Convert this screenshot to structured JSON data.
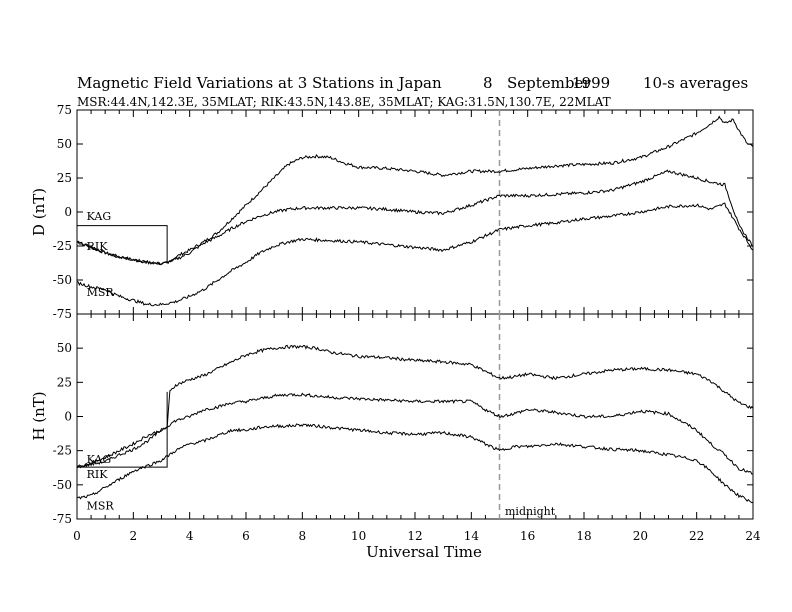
{
  "header": {
    "title": "Magnetic Field Variations at 3 Stations in Japan",
    "date_day": "8",
    "date_month": "September",
    "date_year": "1999",
    "averaging": "10-s averages",
    "stations_info": "MSR:44.4N,142.3E, 35MLAT;   RIK:43.5N,143.8E, 35MLAT;   KAG:31.5N,130.7E, 22MLAT"
  },
  "chart_data": {
    "type": "line",
    "x_label": "Universal Time",
    "x_range": [
      0,
      24
    ],
    "x_ticks": [
      0,
      2,
      4,
      6,
      8,
      10,
      12,
      14,
      16,
      18,
      20,
      22,
      24
    ],
    "midnight_marker": {
      "x": 15,
      "label": "midnight"
    },
    "panels": [
      {
        "name": "D",
        "y_label": "D (nT)",
        "y_range": [
          -75,
          75
        ],
        "y_ticks": [
          75,
          50,
          25,
          0,
          -25,
          -50,
          -75
        ],
        "station_labels": [
          {
            "text": "KAG",
            "x": 0.2,
            "y": -3
          },
          {
            "text": "RIK",
            "x": 0.2,
            "y": -25
          },
          {
            "text": "MSR",
            "x": 0.2,
            "y": -59
          }
        ],
        "step": {
          "t": 3.2,
          "from": -10,
          "to": -38
        },
        "series": [
          {
            "x": [
              0,
              0.5,
              1,
              1.5,
              2,
              2.5,
              3,
              3.2,
              3.5,
              4,
              4.5,
              5,
              5.5,
              6,
              6.5,
              7,
              7.5,
              8,
              8.5,
              9,
              9.5,
              10,
              11,
              12,
              13,
              14,
              15,
              16,
              17,
              18,
              19,
              20,
              21,
              22,
              22.5,
              22.8,
              23,
              23.3,
              23.5,
              23.8,
              24
            ],
            "y": [
              -22,
              -26,
              -30,
              -33,
              -35,
              -37,
              -38,
              -38,
              -33,
              -28,
              -22,
              -15,
              -5,
              5,
              15,
              25,
              35,
              40,
              41,
              40,
              36,
              33,
              32,
              30,
              27,
              30,
              30,
              32,
              34,
              35,
              36,
              40,
              48,
              58,
              65,
              70,
              65,
              68,
              60,
              50,
              48
            ]
          },
          {
            "x": [
              0,
              0.5,
              1,
              1.5,
              2,
              2.5,
              3,
              3.2,
              3.5,
              4,
              4.5,
              5,
              5.5,
              6,
              6.5,
              7,
              7.5,
              8,
              9,
              10,
              11,
              12,
              13,
              14,
              15,
              16,
              17,
              18,
              19,
              20,
              21,
              22,
              22.5,
              23,
              23.5,
              24
            ],
            "y": [
              -22,
              -26,
              -30,
              -33,
              -35,
              -37,
              -38,
              -37,
              -35,
              -30,
              -23,
              -18,
              -12,
              -7,
              -3,
              0,
              2,
              3,
              3,
              3,
              2,
              0,
              -1,
              5,
              12,
              12,
              13,
              14,
              16,
              22,
              30,
              25,
              22,
              20,
              -10,
              -25
            ]
          },
          {
            "x": [
              0,
              0.5,
              1,
              1.5,
              2,
              2.5,
              3,
              3.5,
              4,
              4.5,
              5,
              5.5,
              6,
              6.5,
              7,
              7.5,
              8,
              9,
              10,
              11,
              12,
              13,
              14,
              15,
              16,
              17,
              18,
              19,
              20,
              21,
              22,
              22.5,
              23,
              23.5,
              24
            ],
            "y": [
              -52,
              -55,
              -57,
              -62,
              -65,
              -68,
              -68,
              -66,
              -62,
              -57,
              -50,
              -43,
              -37,
              -30,
              -25,
              -22,
              -20,
              -21,
              -22,
              -24,
              -26,
              -28,
              -22,
              -13,
              -10,
              -8,
              -5,
              -3,
              0,
              4,
              5,
              2,
              6,
              -12,
              -28
            ]
          }
        ]
      },
      {
        "name": "H",
        "y_label": "H (nT)",
        "y_range": [
          -75,
          75
        ],
        "y_ticks": [
          75,
          50,
          25,
          0,
          -25,
          -50,
          -75
        ],
        "station_labels": [
          {
            "text": "KAG",
            "x": 0.2,
            "y": -31
          },
          {
            "text": "RIK",
            "x": 0.2,
            "y": -42
          },
          {
            "text": "MSR",
            "x": 0.2,
            "y": -65
          }
        ],
        "step": {
          "t": 3.2,
          "from": -37,
          "to": 18
        },
        "series": [
          {
            "x": [
              0,
              0.5,
              1,
              1.5,
              2,
              2.5,
              3,
              3.2,
              3.3,
              3.5,
              4,
              4.5,
              5,
              5.5,
              6,
              6.5,
              7,
              7.5,
              8,
              8.5,
              9,
              10,
              11,
              12,
              13,
              14,
              14.5,
              15,
              15.5,
              16,
              17,
              18,
              19,
              20,
              21,
              22,
              22.5,
              23,
              23.5,
              24
            ],
            "y": [
              -37,
              -34,
              -30,
              -25,
              -20,
              -14,
              -10,
              -8,
              18,
              23,
              27,
              30,
              35,
              40,
              45,
              48,
              50,
              51,
              51,
              50,
              47,
              44,
              43,
              41,
              40,
              38,
              33,
              28,
              29,
              31,
              28,
              31,
              34,
              35,
              34,
              31,
              26,
              18,
              10,
              6
            ]
          },
          {
            "x": [
              0,
              0.5,
              1,
              1.5,
              2,
              2.5,
              3,
              3.5,
              4,
              4.5,
              5,
              5.5,
              6,
              6.5,
              7,
              7.5,
              8,
              9,
              10,
              11,
              12,
              13,
              14,
              14.5,
              15,
              15.5,
              16,
              17,
              18,
              19,
              20,
              21,
              22,
              22.5,
              23,
              23.5,
              24
            ],
            "y": [
              -37,
              -35,
              -33,
              -28,
              -24,
              -18,
              -10,
              -3,
              0,
              5,
              7,
              10,
              11,
              13,
              15,
              16,
              16,
              14,
              13,
              12,
              11,
              11,
              11,
              5,
              0,
              2,
              5,
              3,
              0,
              0,
              4,
              2,
              -10,
              -20,
              -28,
              -38,
              -42
            ]
          },
          {
            "x": [
              0,
              0.5,
              1,
              1.5,
              2,
              2.5,
              3,
              3.5,
              4,
              4.5,
              5,
              5.5,
              6,
              6.5,
              7,
              7.5,
              8,
              9,
              10,
              11,
              12,
              13,
              14,
              14.5,
              15,
              15.5,
              16,
              17,
              18,
              19,
              20,
              21,
              22,
              22.5,
              23,
              23.5,
              24
            ],
            "y": [
              -60,
              -58,
              -52,
              -46,
              -40,
              -36,
              -32,
              -25,
              -20,
              -18,
              -14,
              -10,
              -10,
              -8,
              -7,
              -7,
              -6,
              -8,
              -10,
              -12,
              -13,
              -12,
              -15,
              -20,
              -25,
              -22,
              -22,
              -20,
              -22,
              -24,
              -25,
              -28,
              -32,
              -40,
              -50,
              -58,
              -63
            ]
          }
        ]
      }
    ]
  }
}
